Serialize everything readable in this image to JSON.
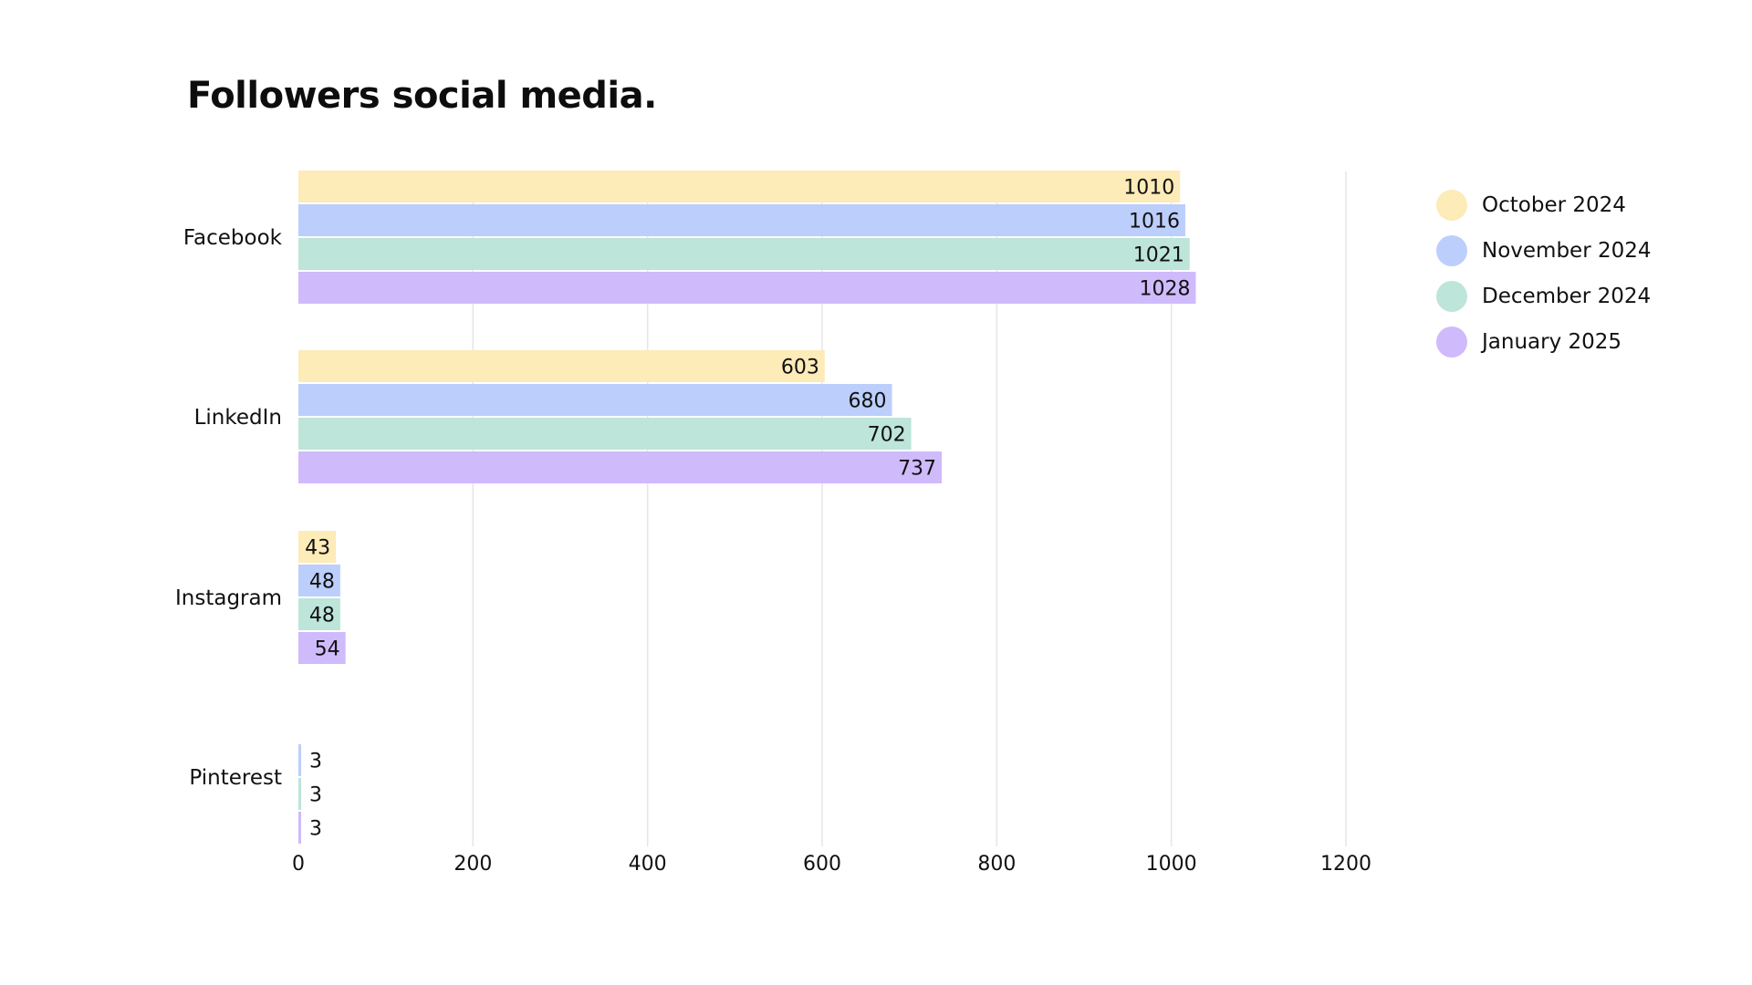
{
  "chart_data": {
    "type": "bar",
    "orientation": "horizontal",
    "title": "Followers social media.",
    "categories": [
      "Facebook",
      "LinkedIn",
      "Instagram",
      "Pinterest"
    ],
    "series": [
      {
        "name": "October 2024",
        "color": "#FDEBB8",
        "values": [
          1010,
          603,
          43,
          0
        ]
      },
      {
        "name": "November 2024",
        "color": "#BCCEFB",
        "values": [
          1016,
          680,
          48,
          3
        ]
      },
      {
        "name": "December 2024",
        "color": "#BDE5DA",
        "values": [
          1021,
          702,
          48,
          3
        ]
      },
      {
        "name": "January 2025",
        "color": "#CFBAFB",
        "values": [
          1028,
          737,
          54,
          3
        ]
      }
    ],
    "xlim": [
      0,
      1200
    ],
    "xticks": [
      0,
      200,
      400,
      600,
      800,
      1000,
      1200
    ],
    "grid": true,
    "legend_position": "right",
    "data_labels": true
  }
}
